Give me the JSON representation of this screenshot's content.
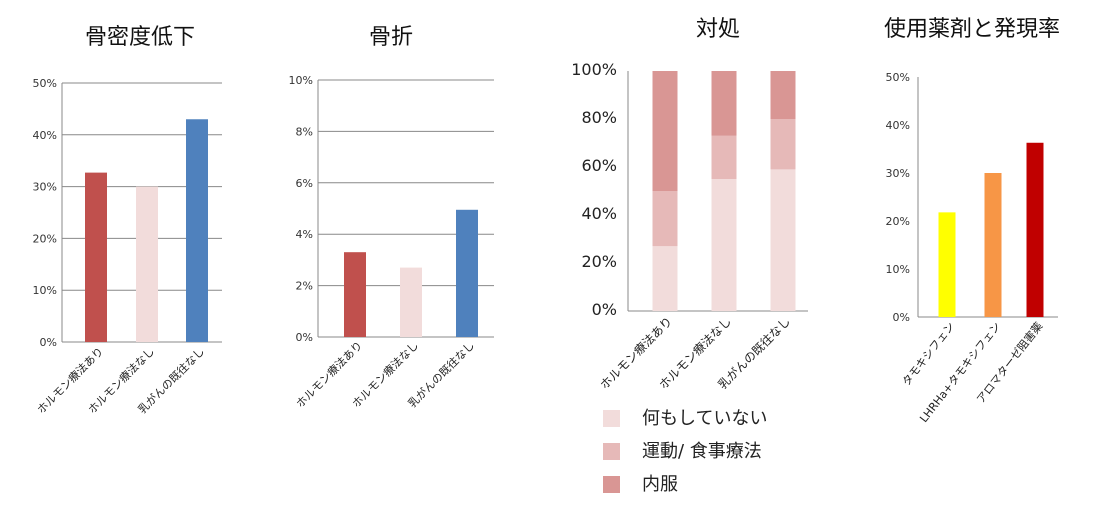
{
  "chart_data": [
    {
      "type": "bar",
      "title": "骨密度低下",
      "categories": [
        "ホルモン療法あり",
        "ホルモン療法なし",
        "乳がんの既往なし"
      ],
      "values": [
        32.7,
        30.0,
        43.0
      ],
      "ylim": [
        0,
        50
      ],
      "yticks": [
        "0%",
        "10%",
        "20%",
        "30%",
        "40%",
        "50%"
      ],
      "colors": [
        "#c0504d",
        "#f2dcdb",
        "#4f81bd"
      ],
      "grid": true
    },
    {
      "type": "bar",
      "title": "骨折",
      "categories": [
        "ホルモン療法あり",
        "ホルモン療法なし",
        "乳がんの既往なし"
      ],
      "values": [
        3.3,
        2.7,
        4.95
      ],
      "ylim": [
        0,
        10
      ],
      "yticks": [
        "0%",
        "2%",
        "4%",
        "6%",
        "8%",
        "10%"
      ],
      "colors": [
        "#c0504d",
        "#f2dcdb",
        "#4f81bd"
      ],
      "grid": true
    },
    {
      "type": "bar",
      "stacked": true,
      "title": "対処",
      "categories": [
        "ホルモン療法あり",
        "ホルモン療法なし",
        "乳がんの既往なし"
      ],
      "series": [
        {
          "name": "何もしていない",
          "values": [
            27,
            55,
            59
          ],
          "color": "#f2dcdb"
        },
        {
          "name": "運動/ 食事療法",
          "values": [
            23,
            18,
            21
          ],
          "color": "#e6b9b8"
        },
        {
          "name": "内服",
          "values": [
            50,
            27,
            20
          ],
          "color": "#d99694"
        }
      ],
      "ylim": [
        0,
        100
      ],
      "yticks": [
        "0%",
        "20%",
        "40%",
        "60%",
        "80%",
        "100%"
      ],
      "grid": false,
      "legend_position": "bottom"
    },
    {
      "type": "bar",
      "title": "使用薬剤と発現率",
      "categories": [
        "タモキシフェン",
        "LHRHa+タモキシフェン",
        "アロマターゼ阻害薬"
      ],
      "values": [
        21.8,
        30.0,
        36.3
      ],
      "ylim": [
        0,
        50
      ],
      "yticks": [
        "0%",
        "10%",
        "20%",
        "30%",
        "40%",
        "50%"
      ],
      "colors": [
        "#ffff00",
        "#f79646",
        "#c00000"
      ],
      "grid": false
    }
  ]
}
